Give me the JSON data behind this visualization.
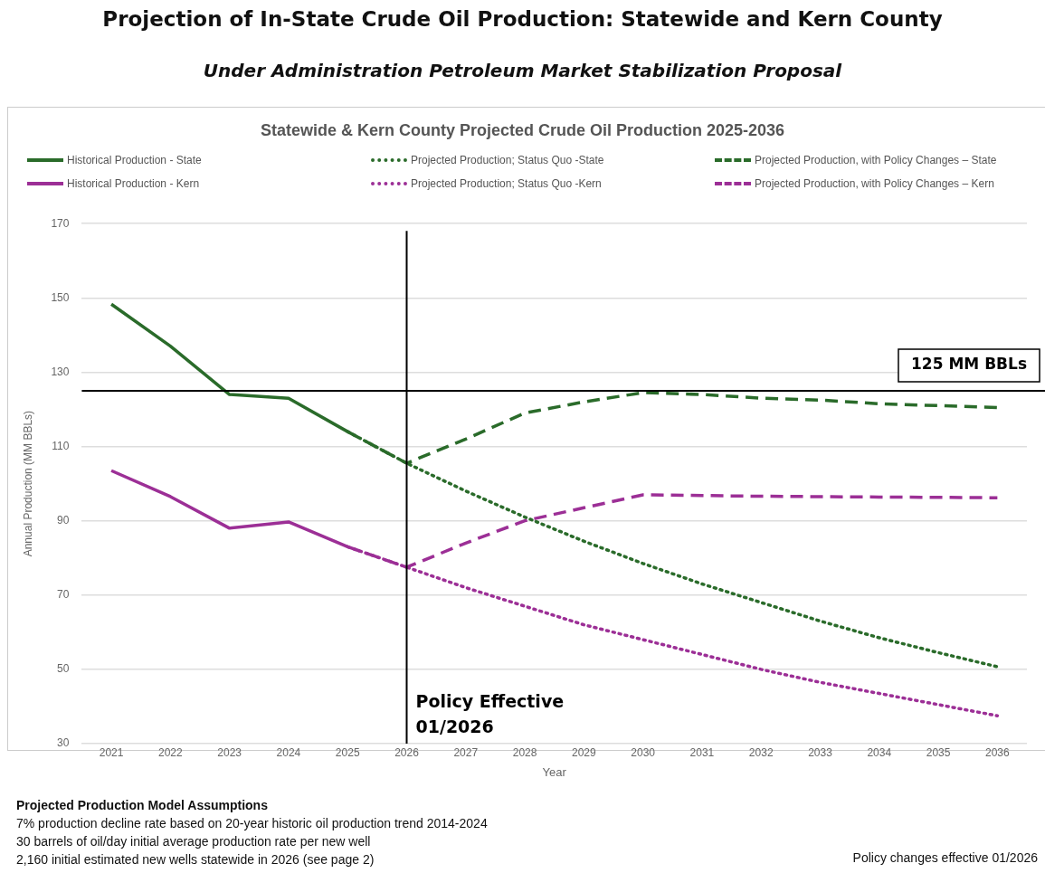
{
  "chart_data": {
    "type": "line",
    "title": "Projection of In-State Crude Oil Production: Statewide and Kern County",
    "subtitle": "Under Administration Petroleum Market Stabilization Proposal",
    "xlabel": "Year",
    "ylabel": "Annual Production (MM BBLs)",
    "x": [
      2021,
      2022,
      2023,
      2024,
      2025,
      2026,
      2027,
      2028,
      2029,
      2030,
      2031,
      2032,
      2033,
      2034,
      2035,
      2036
    ],
    "xlim": [
      2020.5,
      2036.5
    ],
    "xticks": [
      2021,
      2022,
      2023,
      2024,
      2025,
      2026,
      2027,
      2028,
      2029,
      2030,
      2031,
      2032,
      2033,
      2034,
      2035,
      2036
    ],
    "ylim": [
      30,
      170
    ],
    "yticks": [
      30,
      50,
      70,
      90,
      110,
      130,
      150,
      170
    ],
    "grid": "y",
    "legend": "top",
    "marker": "none",
    "series": [
      {
        "name": "Historical Production - State",
        "color": "#2a6b2a",
        "line_style": "solid",
        "values": [
          148.3,
          137,
          124,
          123,
          114,
          null,
          null,
          null,
          null,
          null,
          null,
          null,
          null,
          null,
          null,
          null
        ]
      },
      {
        "name": "Projected Production; Status Quo -State",
        "color": "#2a6b2a",
        "line_style": "dotted",
        "values": [
          null,
          null,
          null,
          null,
          114,
          105.5,
          98,
          91,
          84.5,
          78.5,
          73,
          68,
          63,
          58.5,
          54.5,
          50.7
        ]
      },
      {
        "name": "Projected Production, with Policy Changes – State",
        "color": "#2a6b2a",
        "line_style": "dashed",
        "values": [
          null,
          null,
          null,
          null,
          114,
          105.5,
          112,
          119,
          122,
          124.5,
          124,
          123,
          122.5,
          121.5,
          121,
          120.5
        ]
      },
      {
        "name": "Historical Production - Kern",
        "color": "#9c2f96",
        "line_style": "solid",
        "values": [
          103.5,
          96.5,
          88,
          89.7,
          83,
          null,
          null,
          null,
          null,
          null,
          null,
          null,
          null,
          null,
          null,
          null
        ]
      },
      {
        "name": "Projected Production; Status Quo -Kern",
        "color": "#9c2f96",
        "line_style": "dotted",
        "values": [
          null,
          null,
          null,
          null,
          83,
          77.5,
          72,
          67,
          62,
          58,
          54,
          50,
          46.5,
          43.5,
          40.5,
          37.5
        ]
      },
      {
        "name": "Projected Production, with Policy Changes – Kern",
        "color": "#9c2f96",
        "line_style": "dashed",
        "values": [
          null,
          null,
          null,
          null,
          83,
          77.5,
          84,
          90,
          93.5,
          97,
          96.8,
          96.6,
          96.5,
          96.4,
          96.3,
          96.2
        ]
      }
    ],
    "ref_lines": [
      {
        "axis": "y",
        "value": 125,
        "label": "125 MM BBLs",
        "color": "#000000"
      },
      {
        "axis": "x",
        "value": 2026,
        "label": "Policy Effective 01/2026",
        "color": "#000000"
      }
    ],
    "annotations": [
      "Statewide & Kern County  Projected Crude Oil Production 2025-2036",
      "Projected Production Model Assumptions",
      "7% production decline rate based on 20-year historic oil production trend 2014-2024",
      "30 barrels of oil/day initial average production rate per new well",
      "2,160 initial estimated new wells statewide in 2026 (see page 2)",
      "Policy changes effective 01/2026"
    ]
  }
}
